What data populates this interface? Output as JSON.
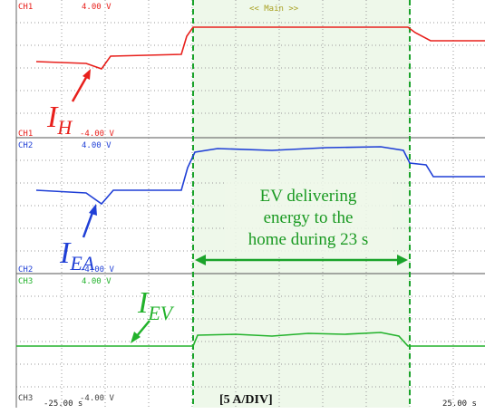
{
  "screen": {
    "header": "<< Main >>",
    "channels": [
      {
        "name": "CH1",
        "top": "4.00 V",
        "bottom_name": "CH1",
        "bottom": "-4.00 V",
        "label": {
          "main": "I",
          "sub": "H"
        },
        "color": "#e8201c"
      },
      {
        "name": "CH2",
        "top": "4.00 V",
        "bottom_name": "CH2",
        "bottom": "-4.00 V",
        "label": {
          "main": "I",
          "sub": "EA"
        },
        "color": "#1f3fd6"
      },
      {
        "name": "CH3",
        "top": "4.00 V",
        "bottom_name": "CH3",
        "bottom": "-4.00 V",
        "label": {
          "main": "I",
          "sub": "EV"
        },
        "color": "#22b22b"
      }
    ],
    "time_left": "-25.00 s",
    "time_right": "25.00 s",
    "scale_note": "[5 A/DIV]",
    "annotation": [
      "EV delivering",
      "energy to the",
      "home during 23 s"
    ]
  }
}
